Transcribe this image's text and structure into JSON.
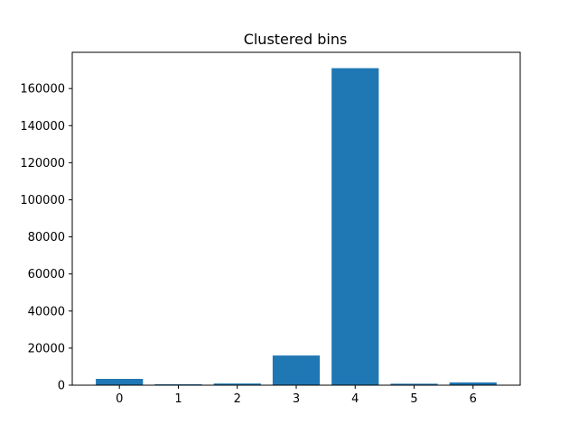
{
  "chart_data": {
    "type": "bar",
    "title": "Clustered bins",
    "xlabel": "",
    "ylabel": "",
    "categories": [
      "0",
      "1",
      "2",
      "3",
      "4",
      "5",
      "6"
    ],
    "values": [
      3400,
      500,
      900,
      16000,
      171000,
      800,
      1500
    ],
    "ylim": [
      0,
      179550
    ],
    "yticks": [
      0,
      20000,
      40000,
      60000,
      80000,
      100000,
      120000,
      140000,
      160000
    ],
    "ytick_labels": [
      "0",
      "20000",
      "40000",
      "60000",
      "80000",
      "100000",
      "120000",
      "140000",
      "160000"
    ],
    "bar_color": "#1f77b4",
    "grid": false,
    "legend": "none"
  }
}
